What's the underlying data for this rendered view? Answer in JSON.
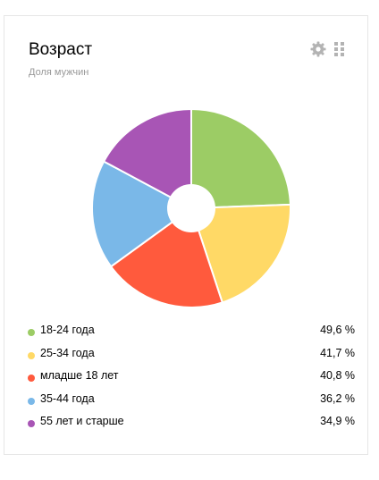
{
  "widget": {
    "title": "Возраст",
    "subtitle": "Доля мужчин",
    "settings_icon": "gear-icon",
    "drag_icon": "drag-handle-icon"
  },
  "chart_data": {
    "type": "pie",
    "categories": [
      "18-24 года",
      "25-34 года",
      "младше 18 лет",
      "35-44 года",
      "55 лет и старше"
    ],
    "values": [
      49.6,
      41.7,
      40.8,
      36.2,
      34.9
    ],
    "value_labels": [
      "49,6 %",
      "41,7 %",
      "40,8 %",
      "36,2 %",
      "34,9 %"
    ],
    "colors": [
      "#9ccc65",
      "#ffd966",
      "#ff5a3d",
      "#7ab8e8",
      "#a855b5"
    ],
    "donut_hole": true
  },
  "legend": [
    {
      "label": "18-24 года",
      "value": "49,6 %"
    },
    {
      "label": "25-34 года",
      "value": "41,7 %"
    },
    {
      "label": "младше 18 лет",
      "value": "40,8 %"
    },
    {
      "label": "35-44 года",
      "value": "36,2 %"
    },
    {
      "label": "55 лет и старше",
      "value": "34,9 %"
    }
  ]
}
